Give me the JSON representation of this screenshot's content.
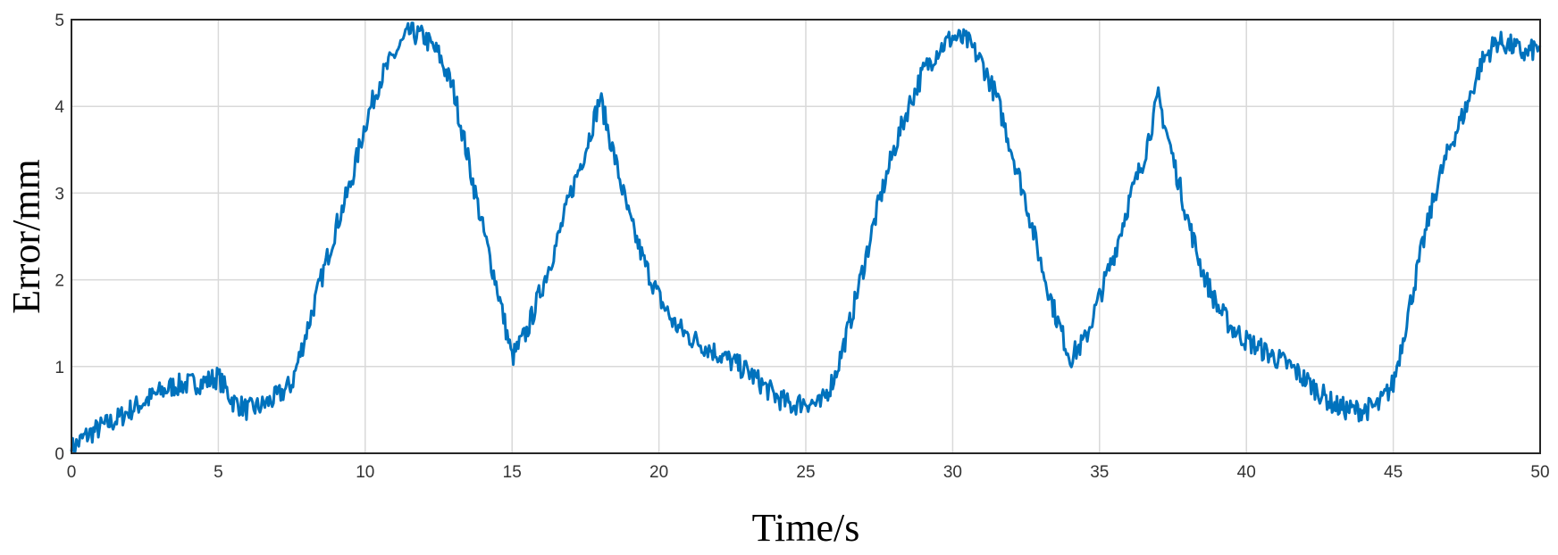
{
  "chart_data": {
    "type": "line",
    "xlabel": "Time/s",
    "ylabel": "Error/mm",
    "xlim": [
      0,
      50
    ],
    "ylim": [
      0,
      5
    ],
    "xticks": [
      0,
      5,
      10,
      15,
      20,
      25,
      30,
      35,
      40,
      45,
      50
    ],
    "yticks": [
      0,
      1,
      2,
      3,
      4,
      5
    ],
    "grid": true,
    "series": [
      {
        "color": "#0072bd",
        "x": [
          0,
          0.5,
          1,
          1.5,
          2,
          2.5,
          3,
          3.5,
          4,
          4.5,
          5,
          5.5,
          6,
          6.5,
          7,
          7.5,
          8,
          8.5,
          9,
          9.5,
          10,
          10.5,
          11,
          11.5,
          12,
          12.5,
          13,
          13.5,
          14,
          14.5,
          15,
          15.5,
          16,
          16.5,
          17,
          17.5,
          18,
          18.5,
          19,
          19.5,
          20,
          20.5,
          21,
          21.5,
          22,
          22.5,
          23,
          23.5,
          24,
          24.5,
          25,
          25.5,
          26,
          26.5,
          27,
          27.5,
          28,
          28.5,
          29,
          29.5,
          30,
          30.5,
          31,
          31.5,
          32,
          32.5,
          33,
          33.5,
          34,
          34.5,
          35,
          35.5,
          36,
          36.5,
          37,
          37.5,
          38,
          38.5,
          39,
          39.5,
          40,
          40.5,
          41,
          41.5,
          42,
          42.5,
          43,
          43.5,
          44,
          44.5,
          45,
          45.5,
          46,
          46.5,
          47,
          47.5,
          48,
          48.5,
          49,
          49.5,
          50
        ],
        "y": [
          0.05,
          0.2,
          0.3,
          0.38,
          0.5,
          0.6,
          0.7,
          0.78,
          0.8,
          0.82,
          0.88,
          0.6,
          0.5,
          0.55,
          0.65,
          0.8,
          1.4,
          2.0,
          2.6,
          3.1,
          3.8,
          4.3,
          4.6,
          4.85,
          4.8,
          4.6,
          4.2,
          3.4,
          2.6,
          1.9,
          1.1,
          1.4,
          1.9,
          2.4,
          3.0,
          3.5,
          4.1,
          3.4,
          2.7,
          2.2,
          1.8,
          1.5,
          1.35,
          1.25,
          1.15,
          1.05,
          0.95,
          0.8,
          0.65,
          0.55,
          0.6,
          0.55,
          0.9,
          1.5,
          2.2,
          2.9,
          3.5,
          4.0,
          4.4,
          4.65,
          4.8,
          4.75,
          4.5,
          4.1,
          3.5,
          2.9,
          2.2,
          1.6,
          1.1,
          1.3,
          1.8,
          2.3,
          2.9,
          3.4,
          4.1,
          3.4,
          2.7,
          2.1,
          1.7,
          1.45,
          1.3,
          1.2,
          1.1,
          1.0,
          0.85,
          0.7,
          0.55,
          0.5,
          0.5,
          0.55,
          0.8,
          1.6,
          2.4,
          3.1,
          3.6,
          4.0,
          4.5,
          4.75,
          4.7,
          4.6,
          4.7
        ]
      }
    ]
  }
}
